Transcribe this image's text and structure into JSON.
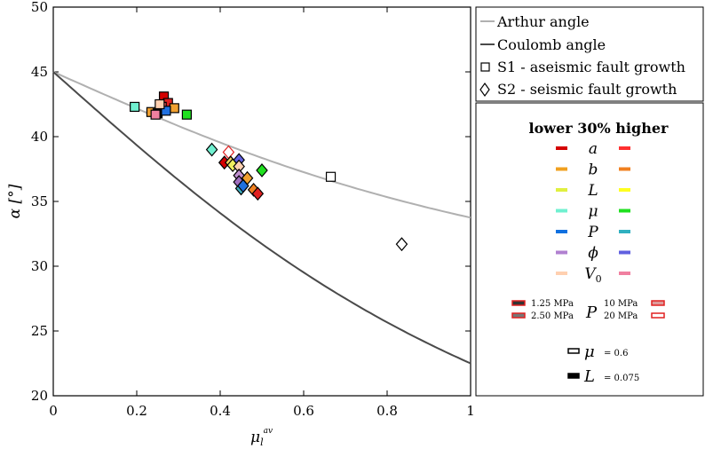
{
  "chart_data": {
    "type": "scatter",
    "xlabel": "μ_l^av",
    "xlabel_main": "μ",
    "xlabel_sub": "l",
    "xlabel_sup": "av",
    "ylabel": "α [°]",
    "xlim": [
      0,
      1
    ],
    "ylim": [
      20,
      50
    ],
    "xticks": [
      0,
      0.2,
      0.4,
      0.6,
      0.8,
      1
    ],
    "xtick_labels": [
      "0",
      "0.2",
      "0.4",
      "0.6",
      "0.8",
      "1"
    ],
    "yticks": [
      20,
      25,
      30,
      35,
      40,
      45,
      50
    ],
    "ytick_labels": [
      "20",
      "25",
      "30",
      "35",
      "40",
      "45",
      "50"
    ],
    "grid": false,
    "legend_position": "right",
    "curves": [
      {
        "name": "Arthur angle",
        "color": "#b0b0b0",
        "formula": "45 - atan(mu)/4 (deg)"
      },
      {
        "name": "Coulomb angle",
        "color": "#4a4a4a",
        "formula": "45 - atan(mu)/2 (deg)"
      }
    ],
    "special_points": [
      {
        "name": "S1 - aseismic fault growth",
        "marker": "square",
        "x": 0.665,
        "y": 36.9
      },
      {
        "name": "S2 - seismic fault growth",
        "marker": "diamond",
        "x": 0.835,
        "y": 31.7
      }
    ],
    "points": [
      {
        "x": 0.265,
        "y": 43.1,
        "marker": "square",
        "color": "#d40000"
      },
      {
        "x": 0.275,
        "y": 42.6,
        "marker": "square",
        "color": "#e02020"
      },
      {
        "x": 0.26,
        "y": 42.3,
        "marker": "square",
        "color": "#ff6060"
      },
      {
        "x": 0.29,
        "y": 42.2,
        "marker": "square",
        "color": "#f0a030"
      },
      {
        "x": 0.235,
        "y": 41.9,
        "marker": "square",
        "color": "#f0a030"
      },
      {
        "x": 0.195,
        "y": 42.3,
        "marker": "square",
        "color": "#70f0d0"
      },
      {
        "x": 0.25,
        "y": 41.8,
        "marker": "square",
        "color": "#000000"
      },
      {
        "x": 0.245,
        "y": 41.7,
        "marker": "square",
        "color": "#f080a0"
      },
      {
        "x": 0.27,
        "y": 42.0,
        "marker": "square",
        "color": "#2070e0"
      },
      {
        "x": 0.32,
        "y": 41.7,
        "marker": "square",
        "color": "#20e020"
      },
      {
        "x": 0.255,
        "y": 42.5,
        "marker": "square",
        "color": "#ffd0b0"
      },
      {
        "x": 0.38,
        "y": 39.0,
        "marker": "diamond",
        "color": "#70f0d0"
      },
      {
        "x": 0.42,
        "y": 38.8,
        "marker": "diamond",
        "color": "#ffffff",
        "edge": "#e02020"
      },
      {
        "x": 0.41,
        "y": 38.0,
        "marker": "diamond",
        "color": "#d40000"
      },
      {
        "x": 0.425,
        "y": 38.0,
        "marker": "diamond",
        "color": "#f0d060"
      },
      {
        "x": 0.43,
        "y": 37.8,
        "marker": "diamond",
        "color": "#f0f060"
      },
      {
        "x": 0.445,
        "y": 38.2,
        "marker": "diamond",
        "color": "#6060e0"
      },
      {
        "x": 0.445,
        "y": 37.7,
        "marker": "diamond",
        "color": "#ffd0b0"
      },
      {
        "x": 0.445,
        "y": 37.0,
        "marker": "diamond",
        "color": "#c090d0"
      },
      {
        "x": 0.445,
        "y": 36.5,
        "marker": "diamond",
        "color": "#a070c0"
      },
      {
        "x": 0.45,
        "y": 36.0,
        "marker": "diamond",
        "color": "#40b0c0"
      },
      {
        "x": 0.455,
        "y": 36.2,
        "marker": "diamond",
        "color": "#2070e0"
      },
      {
        "x": 0.465,
        "y": 36.8,
        "marker": "diamond",
        "color": "#f0a030"
      },
      {
        "x": 0.48,
        "y": 35.9,
        "marker": "diamond",
        "color": "#f08020"
      },
      {
        "x": 0.49,
        "y": 35.6,
        "marker": "diamond",
        "color": "#e02020"
      },
      {
        "x": 0.5,
        "y": 37.4,
        "marker": "diamond",
        "color": "#20e020"
      }
    ]
  },
  "legend": {
    "items": [
      {
        "label": "Arthur angle",
        "type": "line",
        "color": "#b0b0b0"
      },
      {
        "label": "Coulomb angle",
        "type": "line",
        "color": "#4a4a4a"
      },
      {
        "label": "S1 - aseismic fault growth",
        "type": "square"
      },
      {
        "label": "S2 - seismic fault growth",
        "type": "diamond"
      }
    ]
  },
  "sub_legend": {
    "title": "lower 30% higher",
    "rows": [
      {
        "symbol": "a",
        "lower": "#d40000",
        "higher": "#ff3030"
      },
      {
        "symbol": "b",
        "lower": "#f0a020",
        "higher": "#f08020"
      },
      {
        "symbol": "L",
        "lower": "#e0f040",
        "higher": "#ffff20"
      },
      {
        "symbol": "μ",
        "lower": "#70f0d0",
        "higher": "#20e020"
      },
      {
        "symbol": "P",
        "lower": "#1070e0",
        "higher": "#30b0c0"
      },
      {
        "symbol": "ϕ",
        "lower": "#b080d0",
        "higher": "#6060e0"
      },
      {
        "symbol": "V0",
        "lower": "#ffd0b0",
        "higher": "#f080a0"
      }
    ],
    "pressure": {
      "symbol": "P",
      "left_labels": [
        "1.25 MPa",
        "2.50 MPa"
      ],
      "right_labels": [
        "10 MPa",
        "20 MPa"
      ]
    },
    "mu_note": {
      "symbol": "μ",
      "value": "= 0.6"
    },
    "L_note": {
      "symbol": "L",
      "value": "= 0.075"
    }
  }
}
